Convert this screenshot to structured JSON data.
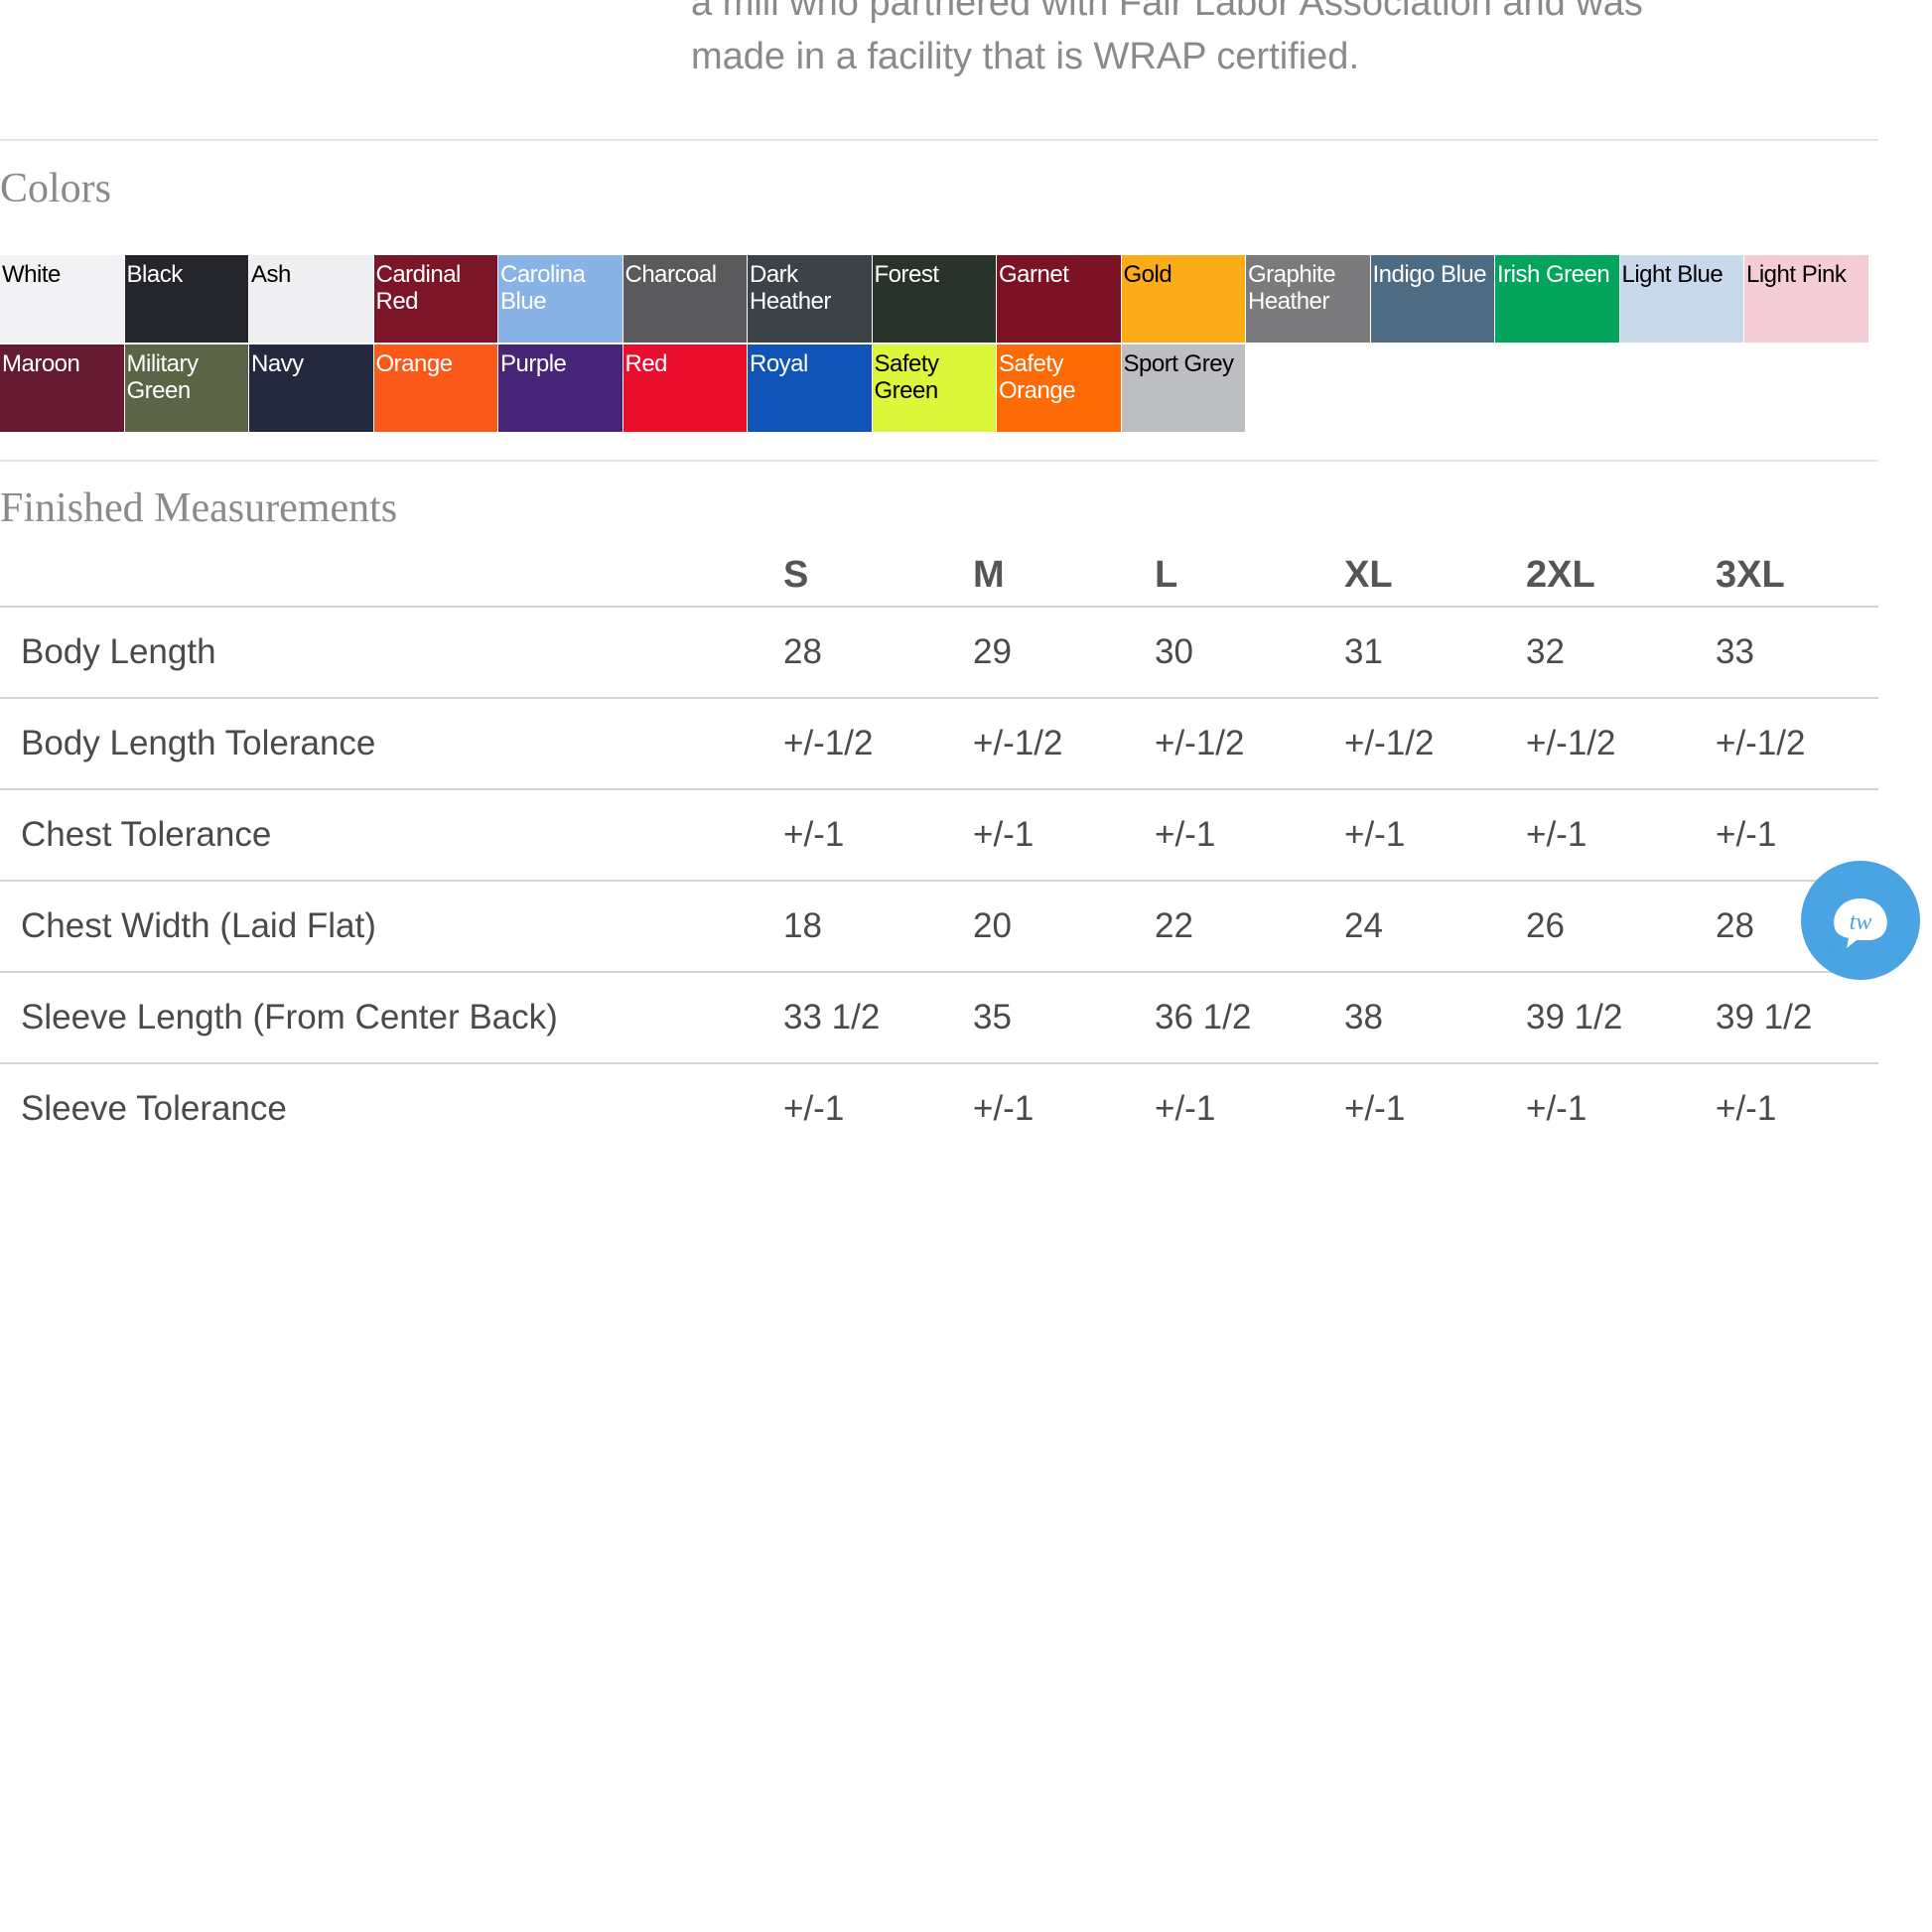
{
  "intro": {
    "line1": "a mill who partnered with Fair Labor Association and was",
    "line2": "made in a facility that is WRAP certified."
  },
  "colors": {
    "heading": "Colors",
    "swatches": [
      {
        "name": "White",
        "bg": "#f2f2f4",
        "text": "#000000"
      },
      {
        "name": "Black",
        "bg": "#25262b",
        "text": "#ffffff"
      },
      {
        "name": "Ash",
        "bg": "#efeff1",
        "text": "#000000"
      },
      {
        "name": "Cardinal Red",
        "bg": "#7d1528",
        "text": "#ffffff"
      },
      {
        "name": "Carolina Blue",
        "bg": "#89b3e6",
        "text": "#ffffff"
      },
      {
        "name": "Charcoal",
        "bg": "#5a5a5c",
        "text": "#ffffff"
      },
      {
        "name": "Dark Heather",
        "bg": "#3b4248",
        "text": "#ffffff"
      },
      {
        "name": "Forest",
        "bg": "#28332b",
        "text": "#ffffff"
      },
      {
        "name": "Garnet",
        "bg": "#7b1226",
        "text": "#ffffff"
      },
      {
        "name": "Gold",
        "bg": "#fbac16",
        "text": "#000000"
      },
      {
        "name": "Graphite Heather",
        "bg": "#7b7b7e",
        "text": "#ffffff"
      },
      {
        "name": "Indigo Blue",
        "bg": "#4e6b84",
        "text": "#ffffff"
      },
      {
        "name": "Irish Green",
        "bg": "#03a55c",
        "text": "#ffffff"
      },
      {
        "name": "Light Blue",
        "bg": "#c9d9ec",
        "text": "#000000"
      },
      {
        "name": "Light Pink",
        "bg": "#f5cdd6",
        "text": "#000000"
      },
      {
        "name": "Maroon",
        "bg": "#661b33",
        "text": "#ffffff"
      },
      {
        "name": "Military Green",
        "bg": "#5b6447",
        "text": "#ffffff"
      },
      {
        "name": "Navy",
        "bg": "#232a3e",
        "text": "#ffffff"
      },
      {
        "name": "Orange",
        "bg": "#fb5919",
        "text": "#ffffff"
      },
      {
        "name": "Purple",
        "bg": "#452676",
        "text": "#ffffff"
      },
      {
        "name": "Red",
        "bg": "#e90e2b",
        "text": "#ffffff"
      },
      {
        "name": "Royal",
        "bg": "#1154b7",
        "text": "#ffffff"
      },
      {
        "name": "Safety Green",
        "bg": "#dcf639",
        "text": "#000000"
      },
      {
        "name": "Safety Orange",
        "bg": "#fd6a06",
        "text": "#ffffff"
      },
      {
        "name": "Sport Grey",
        "bg": "#bdbec2",
        "text": "#000000"
      }
    ]
  },
  "measurements": {
    "heading": "Finished Measurements",
    "sizes": [
      "S",
      "M",
      "L",
      "XL",
      "2XL",
      "3XL"
    ],
    "rows": [
      {
        "label": "Body Length",
        "values": [
          "28",
          "29",
          "30",
          "31",
          "32",
          "33"
        ]
      },
      {
        "label": "Body Length Tolerance",
        "values": [
          "+/-1/2",
          "+/-1/2",
          "+/-1/2",
          "+/-1/2",
          "+/-1/2",
          "+/-1/2"
        ]
      },
      {
        "label": "Chest Tolerance",
        "values": [
          "+/-1",
          "+/-1",
          "+/-1",
          "+/-1",
          "+/-1",
          "+/-1"
        ]
      },
      {
        "label": "Chest Width (Laid Flat)",
        "values": [
          "18",
          "20",
          "22",
          "24",
          "26",
          "28"
        ]
      },
      {
        "label": "Sleeve Length (From Center Back)",
        "values": [
          "33 1/2",
          "35",
          "36 1/2",
          "38",
          "39 1/2",
          "39 1/2"
        ]
      },
      {
        "label": "Sleeve Tolerance",
        "values": [
          "+/-1",
          "+/-1",
          "+/-1",
          "+/-1",
          "+/-1",
          "+/-1"
        ]
      }
    ]
  },
  "chat_widget": {
    "icon": "chat-bubble-icon",
    "label": "tw",
    "color": "#4aa3e3"
  }
}
